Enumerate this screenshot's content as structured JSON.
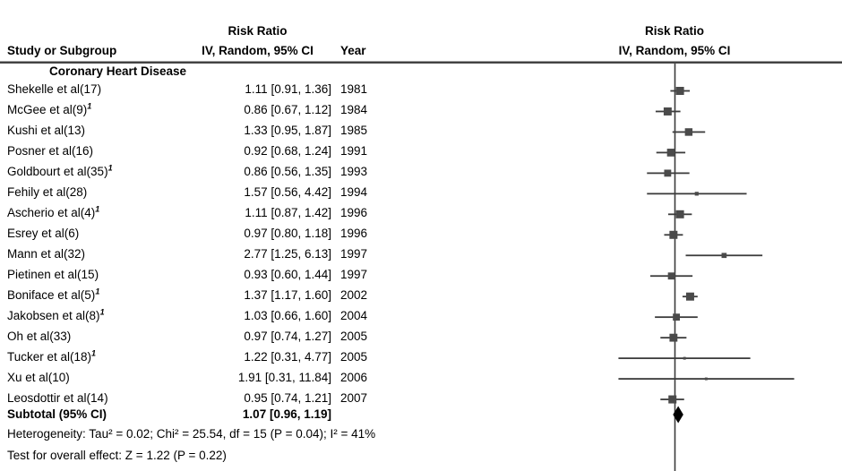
{
  "header": {
    "left_col1_line1": "Risk Ratio",
    "study_col": "Study or Subgroup",
    "effect_col": "IV, Random, 95% CI",
    "year_col": "Year",
    "right_line1": "Risk Ratio",
    "right_line2": "IV, Random, 95% CI"
  },
  "subgroup_label": "Coronary Heart Disease",
  "chart_data": {
    "type": "forest",
    "x_scale": "log",
    "null_line": 1.0,
    "effect_measure": "Risk Ratio",
    "method": "IV, Random, 95% CI",
    "studies": [
      {
        "name": "Shekelle et al(17)",
        "sup": "",
        "rr": 1.11,
        "lo": 0.91,
        "hi": 1.36,
        "ci_text": "1.11 [0.91, 1.36]",
        "year": "1981"
      },
      {
        "name": "McGee et al(9)",
        "sup": "1",
        "rr": 0.86,
        "lo": 0.67,
        "hi": 1.12,
        "ci_text": "0.86 [0.67, 1.12]",
        "year": "1984"
      },
      {
        "name": "Kushi et al(13)",
        "sup": "",
        "rr": 1.33,
        "lo": 0.95,
        "hi": 1.87,
        "ci_text": "1.33 [0.95, 1.87]",
        "year": "1985"
      },
      {
        "name": "Posner et al(16)",
        "sup": "",
        "rr": 0.92,
        "lo": 0.68,
        "hi": 1.24,
        "ci_text": "0.92 [0.68, 1.24]",
        "year": "1991"
      },
      {
        "name": "Goldbourt et al(35)",
        "sup": "1",
        "rr": 0.86,
        "lo": 0.56,
        "hi": 1.35,
        "ci_text": "0.86 [0.56, 1.35]",
        "year": "1993"
      },
      {
        "name": "Fehily et al(28)",
        "sup": "",
        "rr": 1.57,
        "lo": 0.56,
        "hi": 4.42,
        "ci_text": "1.57 [0.56, 4.42]",
        "year": "1994"
      },
      {
        "name": "Ascherio et al(4)",
        "sup": "1",
        "rr": 1.11,
        "lo": 0.87,
        "hi": 1.42,
        "ci_text": "1.11 [0.87, 1.42]",
        "year": "1996"
      },
      {
        "name": "Esrey et al(6)",
        "sup": "",
        "rr": 0.97,
        "lo": 0.8,
        "hi": 1.18,
        "ci_text": "0.97 [0.80, 1.18]",
        "year": "1996"
      },
      {
        "name": "Mann et al(32)",
        "sup": "",
        "rr": 2.77,
        "lo": 1.25,
        "hi": 6.13,
        "ci_text": "2.77 [1.25, 6.13]",
        "year": "1997"
      },
      {
        "name": "Pietinen et al(15)",
        "sup": "",
        "rr": 0.93,
        "lo": 0.6,
        "hi": 1.44,
        "ci_text": "0.93 [0.60, 1.44]",
        "year": "1997"
      },
      {
        "name": "Boniface et al(5)",
        "sup": "1",
        "rr": 1.37,
        "lo": 1.17,
        "hi": 1.6,
        "ci_text": "1.37 [1.17, 1.60]",
        "year": "2002"
      },
      {
        "name": "Jakobsen et al(8)",
        "sup": "1",
        "rr": 1.03,
        "lo": 0.66,
        "hi": 1.6,
        "ci_text": "1.03 [0.66, 1.60]",
        "year": "2004"
      },
      {
        "name": "Oh et al(33)",
        "sup": "",
        "rr": 0.97,
        "lo": 0.74,
        "hi": 1.27,
        "ci_text": "0.97 [0.74, 1.27]",
        "year": "2005"
      },
      {
        "name": "Tucker et al(18)",
        "sup": "1",
        "rr": 1.22,
        "lo": 0.31,
        "hi": 4.77,
        "ci_text": "1.22 [0.31, 4.77]",
        "year": "2005"
      },
      {
        "name": "Xu et al(10)",
        "sup": "",
        "rr": 1.91,
        "lo": 0.31,
        "hi": 11.84,
        "ci_text": "1.91 [0.31, 11.84]",
        "year": "2006"
      },
      {
        "name": "Leosdottir et al(14)",
        "sup": "",
        "rr": 0.95,
        "lo": 0.74,
        "hi": 1.21,
        "ci_text": "0.95 [0.74, 1.21]",
        "year": "2007"
      }
    ],
    "subtotal": {
      "name": "Subtotal (95% CI)",
      "rr": 1.07,
      "lo": 0.96,
      "hi": 1.19,
      "ci_text": "1.07 [0.96, 1.19]"
    }
  },
  "footer": {
    "heterogeneity": "Heterogeneity: Tau² = 0.02; Chi² = 25.54, df = 15 (P = 0.04); I² = 41%",
    "overall_effect": "Test for overall effect: Z = 1.22 (P = 0.22)"
  },
  "colors": {
    "line": "#3c3c3c",
    "marker": "#4a4a4a",
    "diamond": "#000000",
    "text": "#000000",
    "background": "#ffffff"
  }
}
